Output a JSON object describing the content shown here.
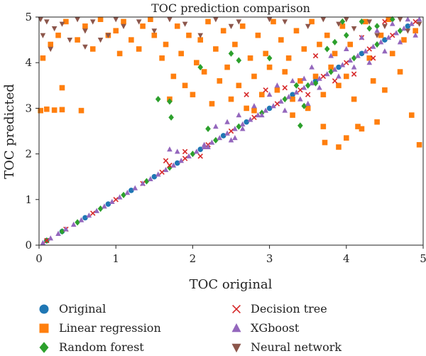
{
  "chart_data": {
    "type": "scatter",
    "title": "TOC prediction comparison",
    "xlabel": "TOC original",
    "ylabel": "TOC predicted",
    "xlim": [
      0,
      5
    ],
    "ylim": [
      0,
      5
    ],
    "xticks": [
      "0",
      "1",
      "2",
      "3",
      "4",
      "5"
    ],
    "yticks": [
      "0",
      "1",
      "2",
      "3",
      "4",
      "5"
    ],
    "grid": false,
    "legend_position": "bottom",
    "series": [
      {
        "name": "Original",
        "marker": "circle",
        "color": "#1f77b4",
        "points": [
          [
            0.1,
            0.1
          ],
          [
            0.3,
            0.3
          ],
          [
            0.6,
            0.6
          ],
          [
            0.9,
            0.9
          ],
          [
            1.2,
            1.2
          ],
          [
            1.5,
            1.5
          ],
          [
            1.8,
            1.8
          ],
          [
            2.1,
            2.1
          ],
          [
            2.4,
            2.4
          ],
          [
            2.7,
            2.7
          ],
          [
            3.0,
            3.0
          ],
          [
            3.3,
            3.3
          ],
          [
            3.6,
            3.6
          ],
          [
            3.9,
            3.9
          ],
          [
            4.2,
            4.2
          ],
          [
            4.5,
            4.5
          ],
          [
            4.8,
            4.8
          ]
        ]
      },
      {
        "name": "Linear regression",
        "marker": "square",
        "color": "#ff7f0e",
        "points": [
          [
            0.02,
            2.95
          ],
          [
            0.1,
            2.98
          ],
          [
            0.2,
            2.96
          ],
          [
            0.3,
            2.97
          ],
          [
            0.55,
            2.95
          ],
          [
            0.3,
            3.45
          ],
          [
            0.05,
            4.1
          ],
          [
            0.15,
            4.4
          ],
          [
            0.25,
            4.6
          ],
          [
            0.35,
            4.9
          ],
          [
            0.5,
            4.5
          ],
          [
            0.6,
            4.8
          ],
          [
            0.7,
            4.3
          ],
          [
            0.8,
            4.95
          ],
          [
            0.9,
            4.6
          ],
          [
            1.0,
            4.7
          ],
          [
            1.05,
            4.2
          ],
          [
            1.1,
            4.9
          ],
          [
            1.2,
            4.5
          ],
          [
            1.3,
            4.3
          ],
          [
            1.35,
            4.8
          ],
          [
            1.45,
            4.95
          ],
          [
            1.5,
            4.6
          ],
          [
            1.6,
            4.1
          ],
          [
            1.65,
            4.4
          ],
          [
            1.7,
            3.2
          ],
          [
            1.75,
            3.7
          ],
          [
            1.8,
            4.8
          ],
          [
            1.85,
            4.2
          ],
          [
            1.9,
            3.5
          ],
          [
            1.95,
            4.6
          ],
          [
            2.0,
            3.3
          ],
          [
            2.05,
            4.0
          ],
          [
            2.1,
            4.5
          ],
          [
            2.15,
            3.8
          ],
          [
            2.2,
            4.9
          ],
          [
            2.25,
            3.1
          ],
          [
            2.3,
            4.3
          ],
          [
            2.35,
            3.6
          ],
          [
            2.4,
            4.7
          ],
          [
            2.45,
            3.9
          ],
          [
            2.5,
            3.2
          ],
          [
            2.55,
            4.4
          ],
          [
            2.6,
            3.5
          ],
          [
            2.65,
            4.8
          ],
          [
            2.7,
            3.0
          ],
          [
            2.75,
            4.1
          ],
          [
            2.8,
            3.7
          ],
          [
            2.85,
            4.6
          ],
          [
            2.9,
            3.3
          ],
          [
            2.95,
            4.2
          ],
          [
            3.0,
            3.9
          ],
          [
            3.05,
            4.9
          ],
          [
            3.1,
            3.4
          ],
          [
            3.15,
            4.5
          ],
          [
            3.2,
            3.8
          ],
          [
            3.25,
            4.1
          ],
          [
            3.3,
            3.2
          ],
          [
            3.35,
            4.7
          ],
          [
            3.4,
            3.6
          ],
          [
            3.45,
            4.3
          ],
          [
            3.5,
            3.0
          ],
          [
            3.55,
            4.9
          ],
          [
            3.6,
            3.7
          ],
          [
            3.65,
            4.4
          ],
          [
            3.7,
            3.3
          ],
          [
            3.75,
            4.6
          ],
          [
            3.8,
            3.9
          ],
          [
            3.85,
            4.2
          ],
          [
            3.9,
            3.5
          ],
          [
            3.95,
            4.8
          ],
          [
            4.0,
            3.7
          ],
          [
            4.05,
            4.4
          ],
          [
            4.1,
            3.2
          ],
          [
            4.15,
            2.6
          ],
          [
            4.2,
            2.55
          ],
          [
            4.25,
            4.9
          ],
          [
            4.3,
            4.1
          ],
          [
            4.35,
            3.6
          ],
          [
            4.4,
            2.7
          ],
          [
            4.45,
            4.6
          ],
          [
            4.5,
            3.4
          ],
          [
            4.55,
            4.95
          ],
          [
            4.6,
            4.2
          ],
          [
            4.7,
            3.8
          ],
          [
            4.75,
            4.5
          ],
          [
            4.85,
            2.85
          ],
          [
            4.9,
            4.7
          ],
          [
            4.95,
            2.2
          ],
          [
            3.72,
            2.25
          ],
          [
            3.9,
            2.15
          ],
          [
            4.0,
            2.35
          ],
          [
            2.8,
            2.95
          ],
          [
            3.3,
            2.85
          ],
          [
            3.7,
            2.6
          ]
        ]
      },
      {
        "name": "Random forest",
        "marker": "diamond",
        "color": "#2ca02c",
        "points": [
          [
            0.1,
            0.1
          ],
          [
            0.3,
            0.3
          ],
          [
            0.5,
            0.5
          ],
          [
            0.8,
            0.8
          ],
          [
            1.1,
            1.1
          ],
          [
            1.4,
            1.4
          ],
          [
            1.7,
            1.7
          ],
          [
            2.0,
            2.0
          ],
          [
            2.3,
            2.3
          ],
          [
            2.6,
            2.6
          ],
          [
            2.9,
            2.9
          ],
          [
            3.2,
            3.2
          ],
          [
            3.5,
            3.5
          ],
          [
            3.8,
            3.8
          ],
          [
            4.1,
            4.1
          ],
          [
            4.4,
            4.4
          ],
          [
            4.7,
            4.7
          ],
          [
            1.55,
            3.2
          ],
          [
            1.7,
            3.15
          ],
          [
            1.72,
            2.8
          ],
          [
            2.2,
            2.55
          ],
          [
            2.1,
            3.9
          ],
          [
            2.6,
            4.05
          ],
          [
            2.5,
            4.2
          ],
          [
            3.0,
            4.1
          ],
          [
            3.4,
            2.62
          ],
          [
            3.45,
            3.05
          ],
          [
            3.35,
            3.5
          ],
          [
            3.6,
            3.55
          ],
          [
            3.75,
            4.3
          ],
          [
            3.85,
            4.45
          ],
          [
            4.2,
            4.9
          ],
          [
            4.3,
            4.75
          ],
          [
            4.4,
            4.8
          ],
          [
            4.6,
            4.95
          ],
          [
            4.0,
            4.6
          ],
          [
            3.95,
            4.9
          ]
        ]
      },
      {
        "name": "Decision tree",
        "marker": "x",
        "color": "#d62728",
        "points": [
          [
            0.1,
            0.1
          ],
          [
            0.35,
            0.35
          ],
          [
            0.7,
            0.7
          ],
          [
            1.0,
            1.0
          ],
          [
            1.35,
            1.35
          ],
          [
            1.6,
            1.6
          ],
          [
            1.9,
            1.9
          ],
          [
            2.2,
            2.2
          ],
          [
            2.5,
            2.5
          ],
          [
            2.8,
            2.8
          ],
          [
            3.1,
            3.1
          ],
          [
            3.4,
            3.4
          ],
          [
            3.7,
            3.7
          ],
          [
            4.0,
            4.0
          ],
          [
            4.3,
            4.3
          ],
          [
            4.6,
            4.6
          ],
          [
            4.9,
            4.9
          ],
          [
            1.65,
            1.85
          ],
          [
            1.7,
            1.75
          ],
          [
            1.9,
            2.05
          ],
          [
            2.1,
            1.95
          ],
          [
            3.2,
            3.45
          ],
          [
            3.5,
            3.3
          ],
          [
            3.85,
            3.6
          ],
          [
            4.2,
            4.55
          ],
          [
            4.35,
            4.1
          ],
          [
            4.5,
            4.9
          ],
          [
            2.7,
            3.3
          ],
          [
            2.95,
            3.4
          ],
          [
            3.6,
            4.15
          ],
          [
            4.1,
            3.75
          ]
        ]
      },
      {
        "name": "XGboost",
        "marker": "triangle-up",
        "color": "#9467bd",
        "points": [
          [
            0.05,
            0.05
          ],
          [
            0.15,
            0.15
          ],
          [
            0.25,
            0.25
          ],
          [
            0.35,
            0.35
          ],
          [
            0.45,
            0.45
          ],
          [
            0.55,
            0.55
          ],
          [
            0.65,
            0.65
          ],
          [
            0.75,
            0.75
          ],
          [
            0.85,
            0.85
          ],
          [
            0.95,
            0.95
          ],
          [
            1.05,
            1.05
          ],
          [
            1.15,
            1.15
          ],
          [
            1.25,
            1.25
          ],
          [
            1.35,
            1.35
          ],
          [
            1.45,
            1.45
          ],
          [
            1.55,
            1.55
          ],
          [
            1.65,
            1.65
          ],
          [
            1.75,
            1.75
          ],
          [
            1.85,
            1.85
          ],
          [
            1.95,
            1.95
          ],
          [
            2.05,
            2.05
          ],
          [
            2.15,
            2.15
          ],
          [
            2.25,
            2.25
          ],
          [
            2.35,
            2.35
          ],
          [
            2.45,
            2.45
          ],
          [
            2.55,
            2.55
          ],
          [
            2.65,
            2.65
          ],
          [
            2.75,
            2.75
          ],
          [
            2.85,
            2.85
          ],
          [
            2.95,
            2.95
          ],
          [
            3.05,
            3.05
          ],
          [
            3.15,
            3.15
          ],
          [
            3.25,
            3.25
          ],
          [
            3.35,
            3.35
          ],
          [
            3.45,
            3.45
          ],
          [
            3.55,
            3.55
          ],
          [
            3.65,
            3.65
          ],
          [
            3.75,
            3.75
          ],
          [
            3.85,
            3.85
          ],
          [
            3.95,
            3.95
          ],
          [
            4.05,
            4.05
          ],
          [
            4.15,
            4.15
          ],
          [
            4.25,
            4.25
          ],
          [
            4.35,
            4.35
          ],
          [
            4.45,
            4.45
          ],
          [
            4.55,
            4.55
          ],
          [
            4.65,
            4.65
          ],
          [
            4.75,
            4.75
          ],
          [
            4.85,
            4.85
          ],
          [
            4.95,
            4.95
          ],
          [
            1.7,
            2.1
          ],
          [
            1.8,
            2.05
          ],
          [
            2.15,
            2.2
          ],
          [
            2.2,
            2.15
          ],
          [
            2.3,
            2.6
          ],
          [
            2.45,
            2.7
          ],
          [
            2.55,
            2.35
          ],
          [
            2.65,
            2.55
          ],
          [
            2.8,
            3.05
          ],
          [
            2.9,
            2.85
          ],
          [
            3.0,
            3.3
          ],
          [
            3.1,
            3.5
          ],
          [
            3.3,
            3.6
          ],
          [
            3.4,
            3.2
          ],
          [
            3.55,
            3.9
          ],
          [
            3.65,
            3.45
          ],
          [
            3.8,
            4.15
          ],
          [
            3.9,
            3.7
          ],
          [
            4.0,
            4.3
          ],
          [
            4.1,
            3.9
          ],
          [
            4.2,
            4.55
          ],
          [
            4.3,
            4.0
          ],
          [
            4.4,
            4.7
          ],
          [
            4.5,
            4.25
          ],
          [
            4.6,
            4.85
          ],
          [
            4.7,
            4.45
          ],
          [
            4.8,
            4.95
          ],
          [
            4.9,
            4.6
          ],
          [
            3.2,
            2.95
          ],
          [
            3.5,
            3.1
          ],
          [
            3.45,
            3.65
          ],
          [
            2.5,
            2.3
          ],
          [
            2.6,
            2.85
          ]
        ]
      },
      {
        "name": "Neural network",
        "marker": "triangle-down",
        "color": "#8c564b",
        "points": [
          [
            0.02,
            4.95
          ],
          [
            0.05,
            4.6
          ],
          [
            0.1,
            4.9
          ],
          [
            0.15,
            4.3
          ],
          [
            0.2,
            4.75
          ],
          [
            0.3,
            4.85
          ],
          [
            0.4,
            4.5
          ],
          [
            0.5,
            4.95
          ],
          [
            0.6,
            4.7
          ],
          [
            0.7,
            4.9
          ],
          [
            0.9,
            4.6
          ],
          [
            1.0,
            4.95
          ],
          [
            1.1,
            4.8
          ],
          [
            1.3,
            4.9
          ],
          [
            1.5,
            4.7
          ],
          [
            1.7,
            4.95
          ],
          [
            1.9,
            4.85
          ],
          [
            2.1,
            4.6
          ],
          [
            2.3,
            4.95
          ],
          [
            2.5,
            4.8
          ],
          [
            2.6,
            4.9
          ],
          [
            3.0,
            4.95
          ],
          [
            3.2,
            4.9
          ],
          [
            3.5,
            4.8
          ],
          [
            3.7,
            4.95
          ],
          [
            3.9,
            4.85
          ],
          [
            4.0,
            4.95
          ],
          [
            4.1,
            4.75
          ],
          [
            4.3,
            4.9
          ],
          [
            4.4,
            4.6
          ],
          [
            4.5,
            4.8
          ],
          [
            4.7,
            4.95
          ],
          [
            4.8,
            4.7
          ],
          [
            4.95,
            4.85
          ],
          [
            0.6,
            4.35
          ],
          [
            0.8,
            4.5
          ]
        ]
      }
    ]
  }
}
